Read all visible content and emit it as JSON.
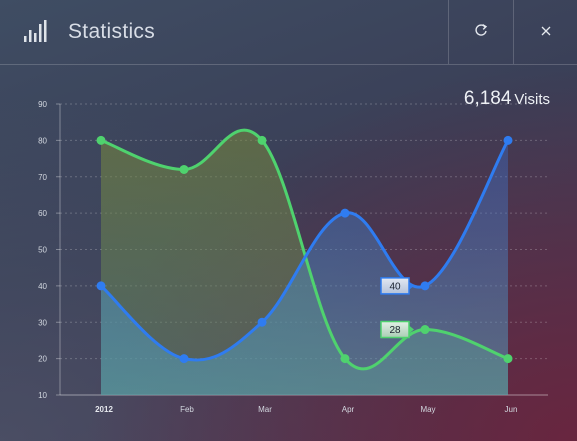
{
  "header": {
    "title": "Statistics",
    "app_icon": "bar-chart-icon",
    "refresh_icon": "refresh-icon",
    "close_icon": "close-icon"
  },
  "summary": {
    "visits_count": "6,184",
    "visits_label": "Visits"
  },
  "chart_data": {
    "type": "line",
    "categories": [
      "2012",
      "Feb",
      "Mar",
      "Apr",
      "May",
      "Jun"
    ],
    "ylim": [
      10,
      90
    ],
    "yticks": [
      10,
      20,
      30,
      40,
      50,
      60,
      70,
      80,
      90
    ],
    "grid": true,
    "series": [
      {
        "values": [
          80,
          72,
          80,
          20,
          28,
          20
        ],
        "color": "#4fd26e"
      },
      {
        "values": [
          40,
          20,
          30,
          60,
          40,
          80
        ],
        "color": "#2f7cf0"
      }
    ],
    "tooltips": [
      {
        "category": "May",
        "series": 1,
        "label": "40"
      },
      {
        "category": "May",
        "series": 0,
        "label": "28"
      }
    ]
  }
}
